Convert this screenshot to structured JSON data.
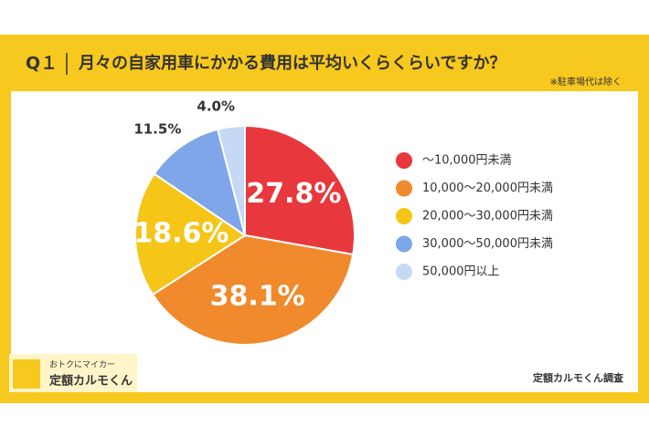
{
  "chart_data": {
    "type": "pie",
    "question_number": "Q１",
    "title": "月々の自家用車にかかる費用は平均いくらくらいですか？",
    "note": "※駐車場代は除く",
    "source": "定額カルモくん調査",
    "logo_tagline": "おトクにマイカー",
    "logo_name": "定額カルモくん",
    "categories": [
      "〜10,000円未満",
      "10,000〜20,000円未満",
      "20,000〜30,000円未満",
      "30,000〜50,000円未満",
      "50,000円以上"
    ],
    "values": [
      27.8,
      38.1,
      18.6,
      11.5,
      4.0
    ],
    "value_labels": [
      "27.8%",
      "38.1%",
      "18.6%",
      "11.5%",
      "4.0%"
    ],
    "colors": [
      "#e8383d",
      "#f08a2c",
      "#f5c518",
      "#7ea6e8",
      "#c5d9f5"
    ]
  }
}
